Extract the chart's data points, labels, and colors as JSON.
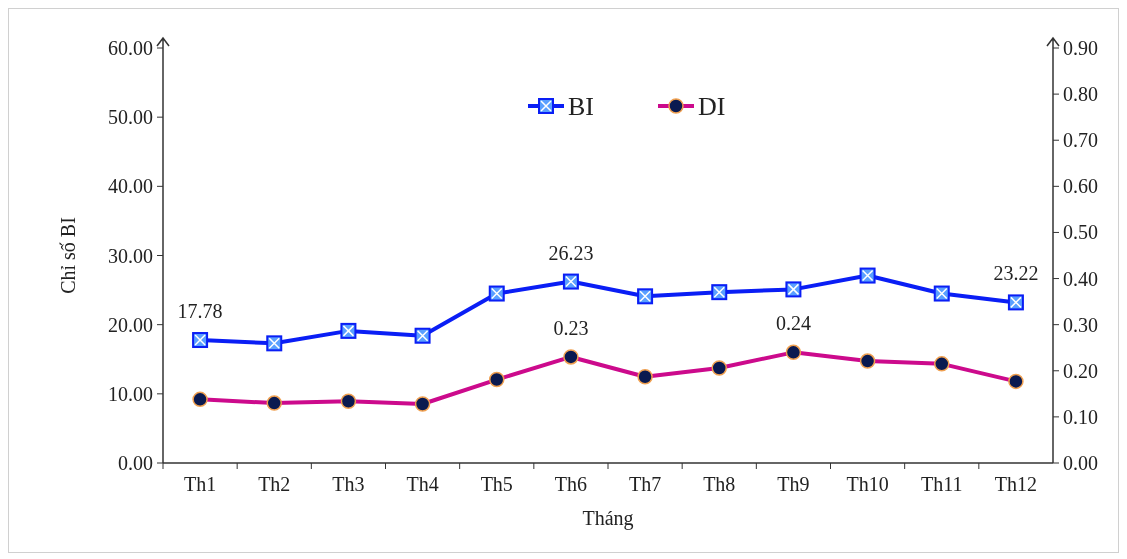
{
  "chart_data": {
    "type": "line",
    "xlabel": "Tháng",
    "ylabel": "Chỉ số BI",
    "categories": [
      "Th1",
      "Th2",
      "Th3",
      "Th4",
      "Th5",
      "Th6",
      "Th7",
      "Th8",
      "Th9",
      "Th10",
      "Th11",
      "Th12"
    ],
    "series": [
      {
        "name": "BI",
        "color": "#0a1ef5",
        "marker": "square",
        "values": [
          17.78,
          17.3,
          19.1,
          18.4,
          24.5,
          26.23,
          24.1,
          24.7,
          25.1,
          27.1,
          24.5,
          23.22
        ],
        "value_labels": [
          "17.78",
          null,
          null,
          null,
          null,
          "26.23",
          null,
          null,
          null,
          null,
          null,
          "23.22"
        ]
      },
      {
        "name": "DI",
        "color": "#cc0a8c",
        "marker": "circle",
        "axis": "y2",
        "values": [
          0.138,
          0.13,
          0.134,
          0.128,
          0.181,
          0.23,
          0.187,
          0.206,
          0.24,
          0.221,
          0.215,
          0.177
        ],
        "value_labels": [
          null,
          null,
          null,
          null,
          null,
          "0.23",
          null,
          null,
          "0.24",
          null,
          null,
          null
        ]
      }
    ],
    "ylim": [
      0,
      60
    ],
    "yticks": [
      {
        "value": 0,
        "label": "0.00"
      },
      {
        "value": 10,
        "label": "10.00"
      },
      {
        "value": 20,
        "label": "20.00"
      },
      {
        "value": 30,
        "label": "30.00"
      },
      {
        "value": 40,
        "label": "40.00"
      },
      {
        "value": 50,
        "label": "50.00"
      },
      {
        "value": 60,
        "label": "60.00"
      }
    ],
    "y2lim": [
      0,
      0.9
    ],
    "y2ticks": [
      {
        "value": 0,
        "label": "0.00"
      },
      {
        "value": 0.1,
        "label": "0.10"
      },
      {
        "value": 0.2,
        "label": "0.20"
      },
      {
        "value": 0.3,
        "label": "0.30"
      },
      {
        "value": 0.4,
        "label": "0.40"
      },
      {
        "value": 0.5,
        "label": "0.50"
      },
      {
        "value": 0.6,
        "label": "0.60"
      },
      {
        "value": 0.7,
        "label": "0.70"
      },
      {
        "value": 0.8,
        "label": "0.80"
      },
      {
        "value": 0.9,
        "label": "0.90"
      }
    ],
    "grid": false,
    "legend": "top",
    "line_style": "solid"
  }
}
